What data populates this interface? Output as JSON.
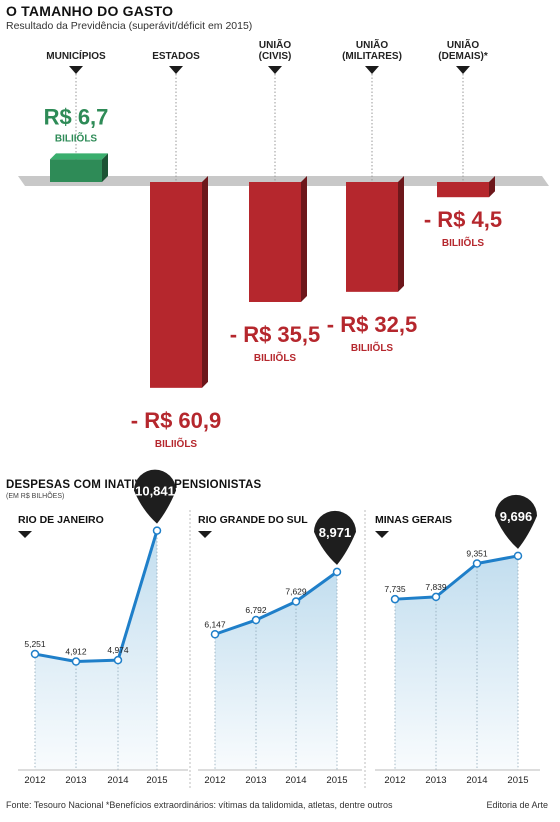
{
  "header": {
    "title": "O TAMANHO DO GASTO",
    "subtitle": "Resultado da Previdência (superávit/déficit em 2015)"
  },
  "section2": {
    "title": "DESPESAS COM INATIVOS E PENSIONISTAS",
    "subtitle": "(EM R$ BILHÕES)"
  },
  "footer": {
    "source": "Fonte: Tesouro Nacional *Benefícios extraordinários: vítimas da talidomida, atletas, dentre outros",
    "credit": "Editoria de Arte"
  },
  "colors": {
    "positive": "#2e8b57",
    "negative": "#b5272d",
    "line": "#1f7fc9",
    "fill": "#bfdcee",
    "callout": "#1e1e1e",
    "baseline": "#c8c8c8"
  },
  "chart_data": [
    {
      "type": "bar",
      "title": "O TAMANHO DO GASTO",
      "subtitle": "Resultado da Previdência (superávit/déficit em 2015)",
      "unit": "BILIIÕLS",
      "categories": [
        {
          "label_lines": [
            "MUNICÍPIOS"
          ],
          "value": 6.7,
          "value_label": "R$ 6,7"
        },
        {
          "label_lines": [
            "ESTADOS"
          ],
          "value": -60.9,
          "value_label": "- R$ 60,9"
        },
        {
          "label_lines": [
            "UNIÃO",
            "(CIVIS)"
          ],
          "value": -35.5,
          "value_label": "- R$ 35,5"
        },
        {
          "label_lines": [
            "UNIÃO",
            "(MILITARES)"
          ],
          "value": -32.5,
          "value_label": "- R$ 32,5"
        },
        {
          "label_lines": [
            "UNIÃO",
            "(DEMAIS)*"
          ],
          "value": -4.5,
          "value_label": "- R$ 4,5"
        }
      ]
    },
    {
      "type": "area",
      "title": "RIO DE JANEIRO",
      "x": [
        "2012",
        "2013",
        "2014",
        "2015"
      ],
      "values": [
        5.251,
        4.912,
        4.974,
        10.841
      ],
      "value_labels": [
        "5,251",
        "4,912",
        "4,974",
        "10,841"
      ],
      "ylim": [
        0,
        12
      ]
    },
    {
      "type": "area",
      "title": "RIO GRANDE DO SUL",
      "x": [
        "2012",
        "2013",
        "2014",
        "2015"
      ],
      "values": [
        6.147,
        6.792,
        7.629,
        8.971
      ],
      "value_labels": [
        "6,147",
        "6,792",
        "7,629",
        "8,971"
      ],
      "ylim": [
        0,
        12
      ]
    },
    {
      "type": "area",
      "title": "MINAS GERAIS",
      "x": [
        "2012",
        "2013",
        "2014",
        "2015"
      ],
      "values": [
        7.735,
        7.839,
        9.351,
        9.696
      ],
      "value_labels": [
        "7,735",
        "7,839",
        "9,351",
        "9,696"
      ],
      "ylim": [
        0,
        12
      ]
    }
  ]
}
